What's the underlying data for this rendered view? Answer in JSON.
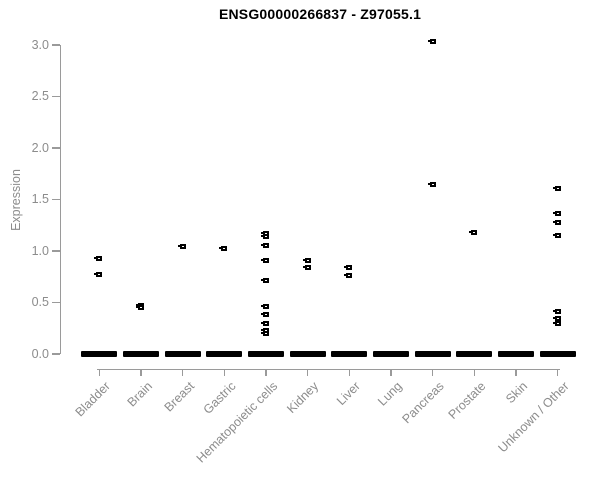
{
  "title": "ENSG00000266837 - Z97055.1",
  "colors": {
    "points": "#000000",
    "axis_line": "#9a9a9a",
    "axis_text": "#8c8c8c",
    "title_text": "#000000",
    "background": "#ffffff"
  },
  "chart_data": {
    "type": "scatter",
    "title": "ENSG00000266837 - Z97055.1",
    "xlabel": "",
    "ylabel": "Expression",
    "ylim": [
      0.0,
      3.0
    ],
    "yticks": [
      "3.0",
      "2.5",
      "2.0",
      "1.5",
      "1.0",
      "0.5",
      "0.0"
    ],
    "ytick_values": [
      3.0,
      2.5,
      2.0,
      1.5,
      1.0,
      0.5,
      0.0
    ],
    "grid": false,
    "legend": null,
    "marker": "small open black square",
    "categories": [
      "Bladder",
      "Brain",
      "Breast",
      "Gastric",
      "Hematopoietic cells",
      "Kidney",
      "Liver",
      "Lung",
      "Pancreas",
      "Prostate",
      "Skin",
      "Unknown / Other"
    ],
    "points": [
      {
        "category": "Bladder",
        "values": [
          0.93,
          0.77
        ],
        "zero_bar": true
      },
      {
        "category": "Brain",
        "values": [
          0.47,
          0.45
        ],
        "zero_bar": true
      },
      {
        "category": "Breast",
        "values": [
          1.04
        ],
        "zero_bar": true
      },
      {
        "category": "Gastric",
        "values": [
          1.02
        ],
        "zero_bar": true
      },
      {
        "category": "Hematopoietic cells",
        "values": [
          1.17,
          1.14,
          1.05,
          0.91,
          0.71,
          0.46,
          0.38,
          0.3,
          0.23,
          0.2
        ],
        "zero_bar": true
      },
      {
        "category": "Kidney",
        "values": [
          0.91,
          0.84
        ],
        "zero_bar": true
      },
      {
        "category": "Liver",
        "values": [
          0.84,
          0.76
        ],
        "zero_bar": true
      },
      {
        "category": "Lung",
        "values": [],
        "zero_bar": true
      },
      {
        "category": "Pancreas",
        "values": [
          3.03,
          1.65
        ],
        "zero_bar": true
      },
      {
        "category": "Prostate",
        "values": [
          1.18
        ],
        "zero_bar": true
      },
      {
        "category": "Skin",
        "values": [],
        "zero_bar": true
      },
      {
        "category": "Unknown / Other",
        "values": [
          1.61,
          1.36,
          1.28,
          1.15,
          0.41,
          0.34,
          0.3
        ],
        "zero_bar": true
      }
    ],
    "zero_bar_meaning": "dense row of overlapping points at expression 0 for every category"
  }
}
